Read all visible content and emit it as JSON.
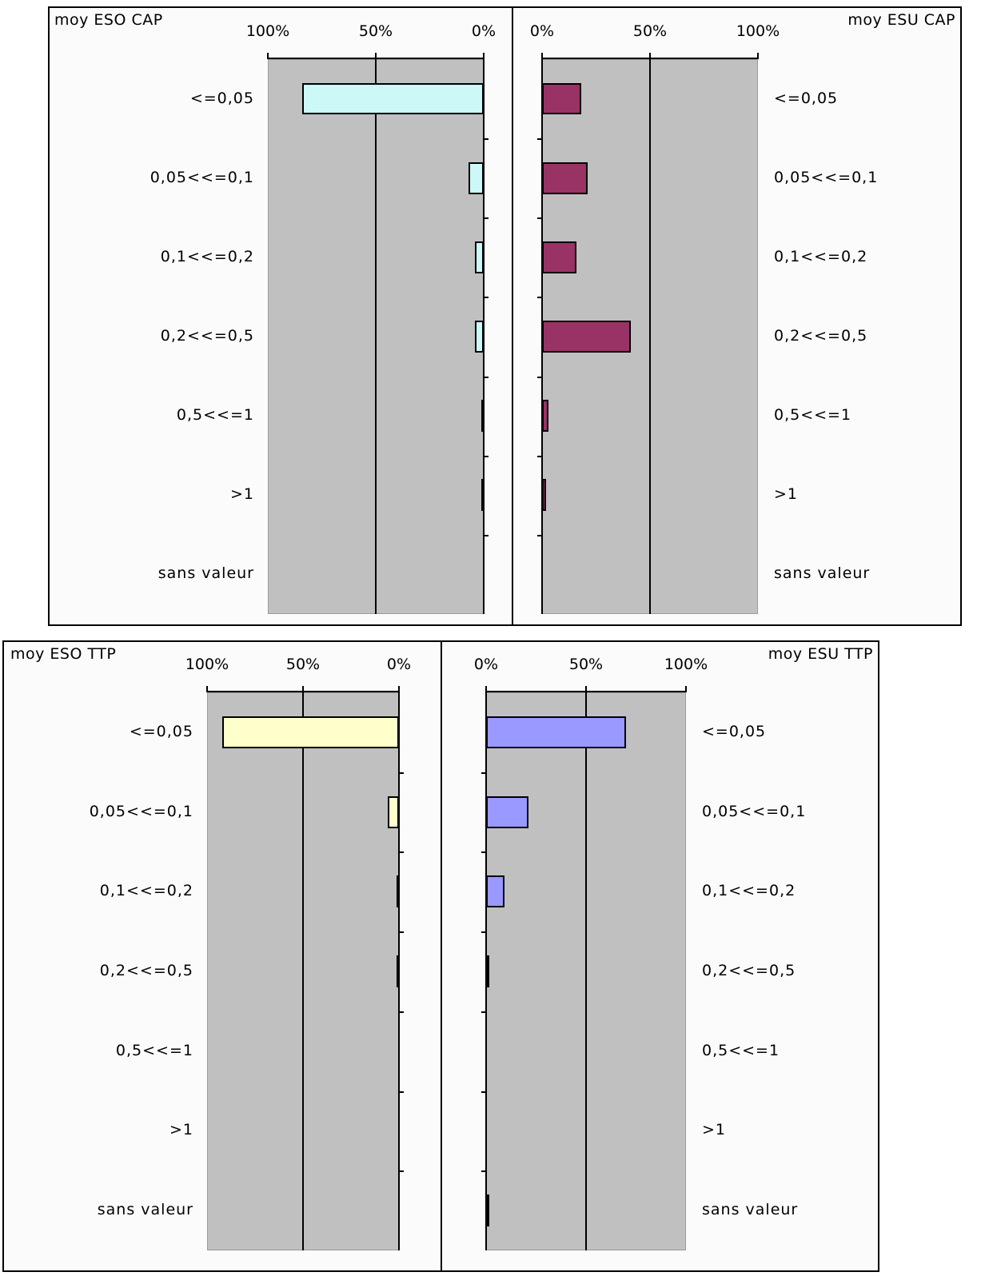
{
  "chart_data": [
    {
      "type": "bar",
      "title": "moy ESO CAP",
      "orientation": "horizontal",
      "direction": "right-to-left",
      "categories": [
        "<=0,05",
        "0,05<<=0,1",
        "0,1<<=0,2",
        "0,2<<=0,5",
        "0,5<<=1",
        ">1",
        "sans valeur"
      ],
      "values": [
        84,
        7,
        4,
        4,
        1,
        1,
        0
      ],
      "xlim": [
        0,
        100
      ],
      "xtick_labels": [
        "100%",
        "50%",
        "0%"
      ],
      "grid": true,
      "colors": {
        "bar": "#ccf8f8"
      }
    },
    {
      "type": "bar",
      "title": "moy ESU CAP",
      "orientation": "horizontal",
      "direction": "left-to-right",
      "categories": [
        "<=0,05",
        "0,05<<=0,1",
        "0,1<<=0,2",
        "0,2<<=0,5",
        "0,5<<=1",
        ">1",
        "sans valeur"
      ],
      "values": [
        18,
        21,
        16,
        41,
        3,
        2,
        0
      ],
      "xlim": [
        0,
        100
      ],
      "xtick_labels": [
        "0%",
        "50%",
        "100%"
      ],
      "grid": true,
      "colors": {
        "bar": "#993366"
      }
    },
    {
      "type": "bar",
      "title": "moy ESO TTP",
      "orientation": "horizontal",
      "direction": "right-to-left",
      "categories": [
        "<=0,05",
        "0,05<<=0,1",
        "0,1<<=0,2",
        "0,2<<=0,5",
        "0,5<<=1",
        ">1",
        "sans valeur"
      ],
      "values": [
        92,
        6,
        1,
        1,
        0,
        0,
        0
      ],
      "xlim": [
        0,
        100
      ],
      "xtick_labels": [
        "100%",
        "50%",
        "0%"
      ],
      "grid": true,
      "colors": {
        "bar": "#ffffcc"
      }
    },
    {
      "type": "bar",
      "title": "moy ESU TTP",
      "orientation": "horizontal",
      "direction": "left-to-right",
      "categories": [
        "<=0,05",
        "0,05<<=0,1",
        "0,1<<=0,2",
        "0,2<<=0,5",
        "0,5<<=1",
        ">1",
        "sans valeur"
      ],
      "values": [
        70,
        21,
        9,
        1,
        0,
        0,
        1
      ],
      "xlim": [
        0,
        100
      ],
      "xtick_labels": [
        "0%",
        "50%",
        "100%"
      ],
      "grid": true,
      "colors": {
        "bar": "#9999ff"
      }
    }
  ]
}
